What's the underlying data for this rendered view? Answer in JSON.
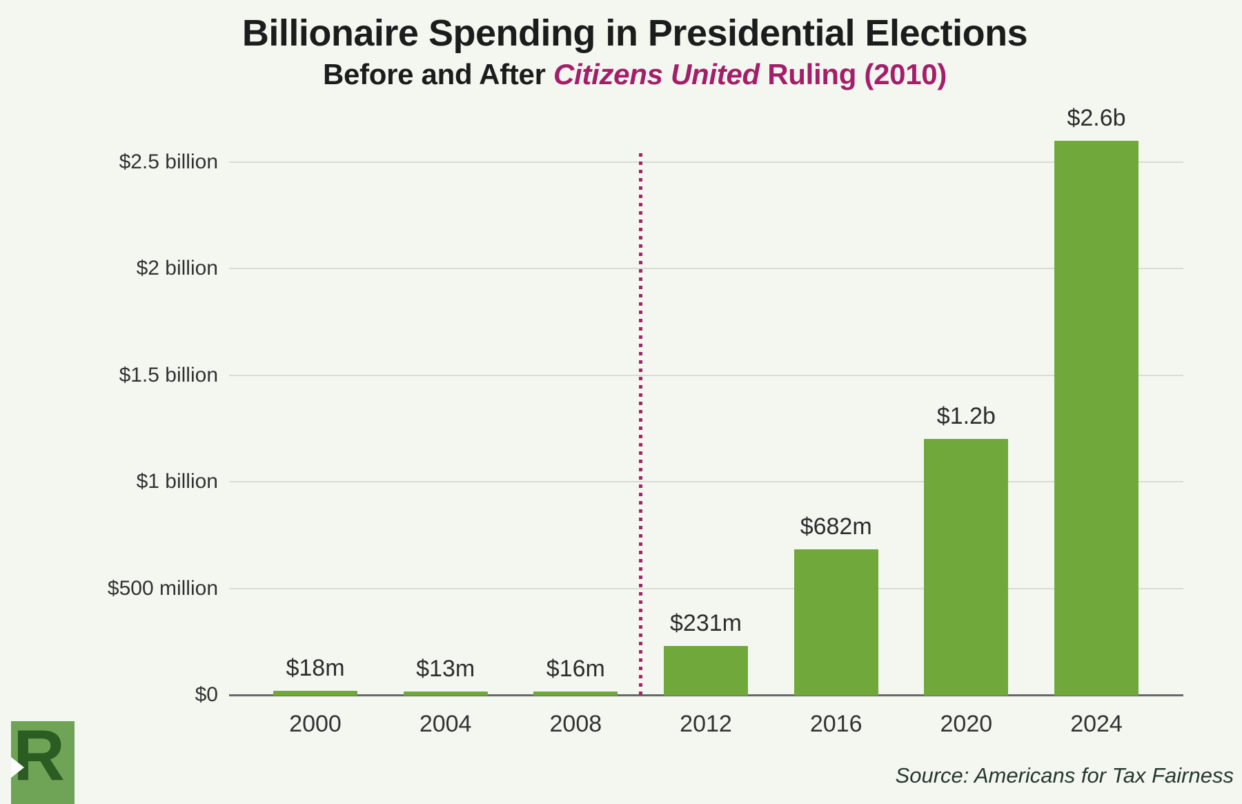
{
  "page": {
    "background": "#f3f7f0"
  },
  "chart_data": {
    "type": "bar",
    "title": "Billionaire Spending in Presidential Elections",
    "subtitle": "Before and After Citizens United Ruling (2010)",
    "subtitle_parts": {
      "prefix": "Before and After ",
      "case_name": "Citizens United",
      "suffix": " Ruling (2010)"
    },
    "categories": [
      "2000",
      "2004",
      "2008",
      "2012",
      "2016",
      "2020",
      "2024"
    ],
    "values_millions": [
      18,
      13,
      16,
      231,
      682,
      1200,
      2600
    ],
    "value_labels": [
      "$18m",
      "$13m",
      "$16m",
      "$231m",
      "$682m",
      "$1.2b",
      "$2.6b"
    ],
    "y_ticks": [
      {
        "value": 0,
        "label": "$0"
      },
      {
        "value": 500,
        "label": "$500 million"
      },
      {
        "value": 1000,
        "label": "$1 billion"
      },
      {
        "value": 1500,
        "label": "$1.5 billion"
      },
      {
        "value": 2000,
        "label": "$2 billion"
      },
      {
        "value": 2500,
        "label": "$2.5 billion"
      }
    ],
    "ylim_millions": [
      0,
      2700
    ],
    "grid": "horizontal",
    "legend": "none",
    "bar_color": "#70a83c",
    "annotation_line": {
      "x_year": 2010,
      "style": "dotted",
      "color": "#a8216b"
    }
  },
  "footer": {
    "source": "Source: Americans for Tax Fairness",
    "logo_letter": "R"
  },
  "colors": {
    "background": "#f3f7f0",
    "bar_green": "#70a83c",
    "magenta_accent": "#a41e69",
    "gridline_gray": "#d8dcd3",
    "baseline_gray": "#66676a",
    "title_black": "#1c1c1c",
    "logo_square_green": "#6fa356",
    "logo_letter_green": "#2b5c21"
  }
}
